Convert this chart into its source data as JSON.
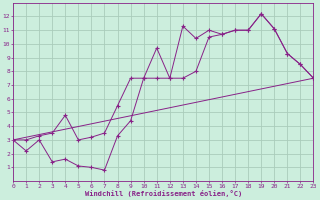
{
  "xlabel": "Windchill (Refroidissement éolien,°C)",
  "bg_color": "#cceedd",
  "grid_color": "#aaccbb",
  "line_color": "#882288",
  "line1_x": [
    0,
    1,
    2,
    3,
    4,
    5,
    6,
    7,
    8,
    9,
    10,
    11,
    12,
    13,
    14,
    15,
    16,
    17,
    18,
    19,
    20,
    21,
    22,
    23
  ],
  "line1_y": [
    3.0,
    2.2,
    3.0,
    1.4,
    1.6,
    1.1,
    1.0,
    0.8,
    3.3,
    4.4,
    7.5,
    9.7,
    7.5,
    11.3,
    10.4,
    11.0,
    10.7,
    11.0,
    11.0,
    12.2,
    11.1,
    9.3,
    8.5,
    7.5
  ],
  "line2_x": [
    0,
    1,
    2,
    3,
    4,
    5,
    6,
    7,
    8,
    9,
    10,
    11,
    12,
    13,
    14,
    15,
    16,
    17,
    18,
    19,
    20,
    21,
    22,
    23
  ],
  "line2_y": [
    3.0,
    3.0,
    3.3,
    3.5,
    4.8,
    3.0,
    3.2,
    3.5,
    5.5,
    7.5,
    7.5,
    7.5,
    7.5,
    7.5,
    8.0,
    10.5,
    10.7,
    11.0,
    11.0,
    12.2,
    11.1,
    9.3,
    8.5,
    7.5
  ],
  "line3_x": [
    0,
    23
  ],
  "line3_y": [
    3.0,
    7.5
  ],
  "xlim": [
    0,
    23
  ],
  "ylim": [
    0,
    13
  ],
  "xticks": [
    0,
    1,
    2,
    3,
    4,
    5,
    6,
    7,
    8,
    9,
    10,
    11,
    12,
    13,
    14,
    15,
    16,
    17,
    18,
    19,
    20,
    21,
    22,
    23
  ],
  "yticks": [
    1,
    2,
    3,
    4,
    5,
    6,
    7,
    8,
    9,
    10,
    11,
    12
  ],
  "xlabel_fontsize": 5.0,
  "tick_fontsize": 4.5
}
